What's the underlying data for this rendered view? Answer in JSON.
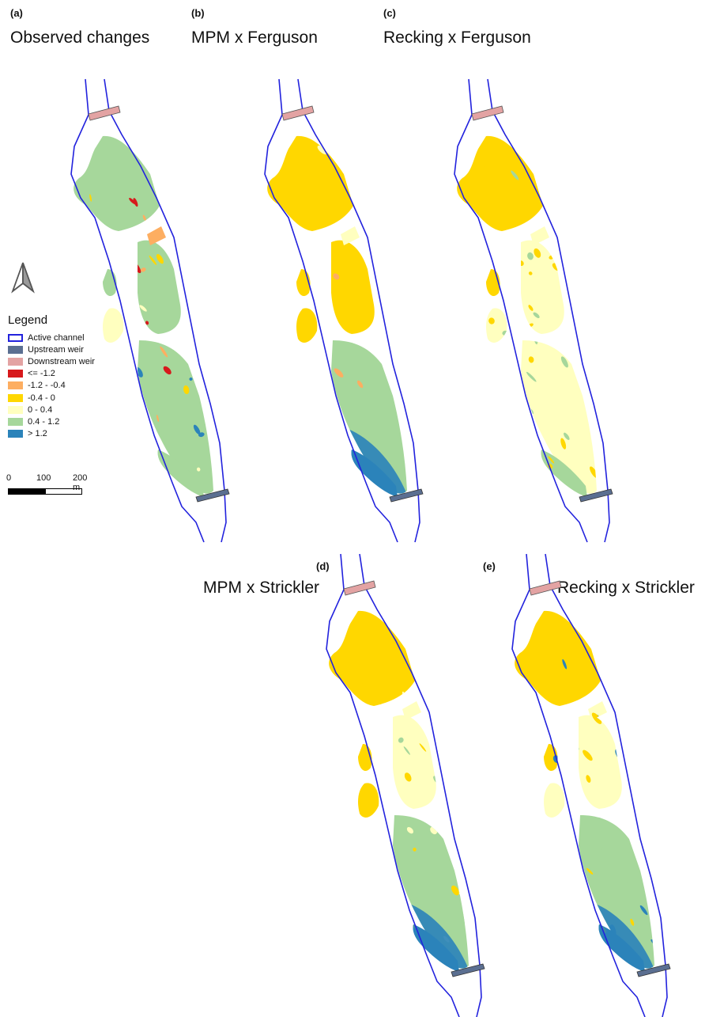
{
  "panels": [
    {
      "letter": "(a)",
      "title": "Observed changes",
      "variant": "observed"
    },
    {
      "letter": "(b)",
      "title": "MPM x Ferguson",
      "variant": "mpm_ferguson"
    },
    {
      "letter": "(c)",
      "title": "Recking x Ferguson",
      "variant": "recking_ferguson"
    },
    {
      "letter": "(d)",
      "title": "MPM x Strickler",
      "variant": "mpm_strickler"
    },
    {
      "letter": "(e)",
      "title": "Recking x Strickler",
      "variant": "recking_strickler"
    }
  ],
  "legend": {
    "title": "Legend",
    "items": [
      {
        "label": "Active channel",
        "kind": "outline",
        "color": "#2222dd"
      },
      {
        "label": "Upstream weir",
        "kind": "fill",
        "color": "#5b6f91"
      },
      {
        "label": "Downstream weir",
        "kind": "fill",
        "color": "#e3a3a3"
      },
      {
        "label": "<= -1.2",
        "kind": "fill",
        "color": "#d7191c"
      },
      {
        "label": "-1.2 - -0.4",
        "kind": "fill",
        "color": "#fdae61"
      },
      {
        "label": "-0.4 - 0",
        "kind": "fill",
        "color": "#ffd700"
      },
      {
        "label": "0 - 0.4",
        "kind": "fill",
        "color": "#ffffbf"
      },
      {
        "label": "0.4 - 1.2",
        "kind": "fill",
        "color": "#a6d79b"
      },
      {
        "label": "> 1.2",
        "kind": "fill",
        "color": "#2b83ba"
      }
    ]
  },
  "scale_bar": {
    "labels": [
      "0",
      "100",
      "200 m"
    ]
  },
  "north_arrow": "north-arrow-icon"
}
